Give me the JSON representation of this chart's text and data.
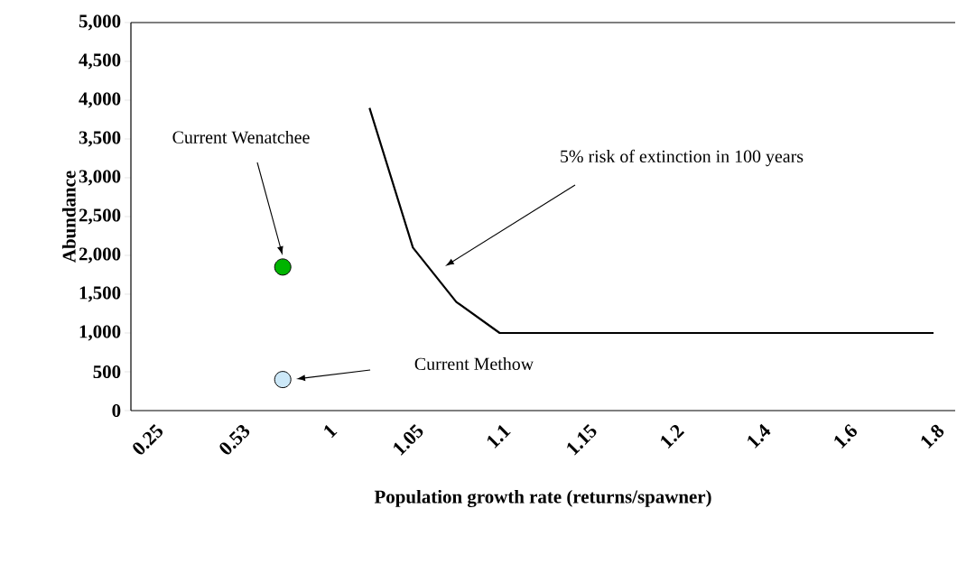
{
  "chart_data": {
    "type": "line",
    "xlabel": "Population growth rate (returns/spawner)",
    "ylabel": "Abundance",
    "categories": [
      "0.25",
      null,
      "0.53",
      null,
      "1",
      null,
      "1.05",
      null,
      "1.1",
      null,
      "1.15",
      null,
      "1.2",
      null,
      "1.4",
      null,
      "1.6",
      null,
      "1.8"
    ],
    "ylim": [
      0,
      5000
    ],
    "yticks": [
      0,
      500,
      {
        "value": 1000,
        "label": "1,000"
      },
      {
        "value": 1500,
        "label": "1,500"
      },
      {
        "value": 2000,
        "label": "2,000"
      },
      {
        "value": 2500,
        "label": "2,500"
      },
      {
        "value": 3000,
        "label": "3,000"
      },
      {
        "value": 3500,
        "label": "3,500"
      },
      {
        "value": 4000,
        "label": "4,000"
      },
      {
        "value": 4500,
        "label": "4,500"
      },
      {
        "value": 5000,
        "label": "5,000"
      }
    ],
    "series": [
      {
        "color": "#000000",
        "line_style": "solid",
        "values": [
          null,
          null,
          null,
          null,
          null,
          3900,
          2100,
          1400,
          1000,
          1000,
          1000,
          1000,
          1000,
          1000,
          1000,
          1000,
          1000,
          1000,
          1000
        ]
      },
      {
        "type": "scatter",
        "color": "#00b400",
        "marker": "circle",
        "values": [
          null,
          null,
          null,
          1850,
          null,
          null,
          null,
          null,
          null,
          null,
          null,
          null,
          null,
          null,
          null,
          null,
          null,
          null,
          null
        ]
      },
      {
        "type": "scatter",
        "color": "#cce8f8",
        "marker": "circle",
        "values": [
          null,
          null,
          null,
          400,
          null,
          null,
          null,
          null,
          null,
          null,
          null,
          null,
          null,
          null,
          null,
          null,
          null,
          null,
          null
        ]
      }
    ],
    "annotations": [
      "Current Wenatchee",
      "Current Methow",
      "5% risk of extinction in 100 years"
    ]
  }
}
